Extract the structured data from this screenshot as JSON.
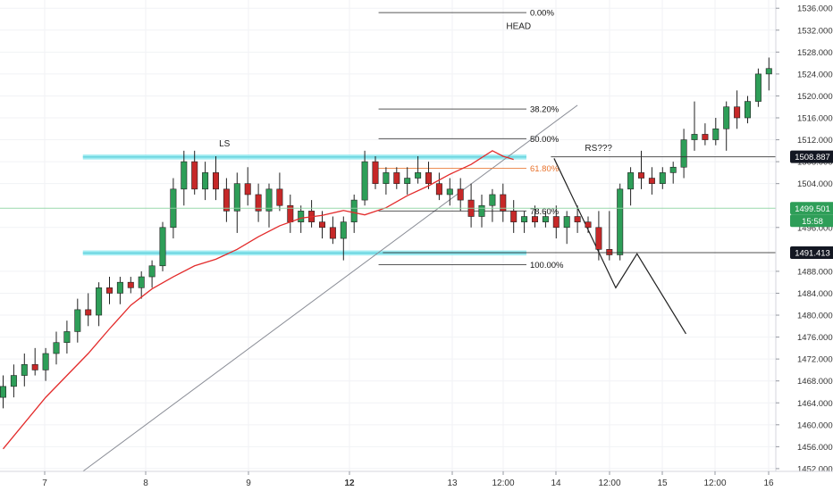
{
  "chart_data": {
    "type": "candlestick",
    "y_axis": {
      "ticks": [
        1452,
        1456,
        1460,
        1464,
        1468,
        1472,
        1476,
        1480,
        1484,
        1488,
        1496,
        1504,
        1508,
        1512,
        1516,
        1520,
        1524,
        1528,
        1532,
        1536
      ],
      "tick_labels": [
        "1452.000",
        "1456.000",
        "1460.000",
        "1464.000",
        "1468.000",
        "1472.000",
        "1476.000",
        "1480.000",
        "1484.000",
        "1488.000",
        "1496.000",
        "1504.000",
        "1508.000",
        "1512.000",
        "1516.000",
        "1520.000",
        "1524.000",
        "1528.000",
        "1532.000",
        "1536.000"
      ],
      "range": [
        1451.5,
        1537.5
      ],
      "position": "right"
    },
    "x_axis": {
      "tick_labels": [
        "7",
        "8",
        "9",
        "12",
        "13",
        "12:00",
        "14",
        "12:00",
        "15",
        "12:00",
        "16"
      ],
      "tick_bold": [
        false,
        false,
        false,
        true,
        false,
        false,
        false,
        false,
        false,
        false,
        false
      ]
    },
    "price_tags": [
      {
        "value": 1508.887,
        "label": "1508.887",
        "style": "dark"
      },
      {
        "value": 1499.501,
        "label": "1499.501",
        "style": "green"
      },
      {
        "value": 1491.413,
        "label": "1491.413",
        "style": "dark"
      }
    ],
    "countdown": "15:58",
    "fibonacci": [
      {
        "label": "0.00%",
        "value": 1535.2,
        "color": "#111111"
      },
      {
        "label": "38.20%",
        "value": 1517.6,
        "color": "#111111"
      },
      {
        "label": "50.00%",
        "value": 1512.2,
        "color": "#111111"
      },
      {
        "label": "61.80%",
        "value": 1506.8,
        "color": "#e8722c"
      },
      {
        "label": "78.60%",
        "value": 1499.0,
        "color": "#111111"
      },
      {
        "label": "100.00%",
        "value": 1489.2,
        "color": "#111111"
      }
    ],
    "annotations": [
      {
        "text": "HEAD",
        "x": 47.3,
        "value": 1532.2
      },
      {
        "text": "LS",
        "x": 20.3,
        "value": 1510.8
      },
      {
        "text": "RS???",
        "x": 54.7,
        "value": 1510.0
      }
    ],
    "support_resistance_zones": [
      {
        "from": 1508.4,
        "to": 1509.3
      },
      {
        "from": 1490.9,
        "to": 1491.8
      }
    ],
    "trendline": {
      "from": {
        "x": 7.5,
        "y": 1451.5
      },
      "to": {
        "x": 54.0,
        "y": 1518.3
      }
    },
    "projection_path": [
      {
        "x": 51.8,
        "y": 1508.6
      },
      {
        "x": 57.6,
        "y": 1485.0
      },
      {
        "x": 59.6,
        "y": 1491.2
      },
      {
        "x": 64.2,
        "y": 1476.6
      }
    ],
    "moving_average": {
      "color": "#e32b2b",
      "x": [
        0,
        4,
        8,
        10,
        12,
        14,
        16,
        18,
        20,
        22,
        24,
        26,
        28,
        30,
        32,
        34,
        36,
        38,
        40,
        42,
        44,
        46,
        47,
        48
      ],
      "y": [
        1455.6,
        1465.0,
        1473.0,
        1477.5,
        1481.8,
        1484.8,
        1487.0,
        1489.0,
        1490.2,
        1492.0,
        1494.3,
        1496.3,
        1497.7,
        1498.2,
        1499.1,
        1498.3,
        1499.6,
        1501.8,
        1503.6,
        1505.7,
        1507.5,
        1510.0,
        1509.0,
        1508.4
      ]
    },
    "candles": {
      "fields": [
        "open",
        "high",
        "low",
        "close"
      ],
      "up_color": "#2e9e58",
      "down_color": "#c62828",
      "data": [
        [
          1465,
          1469,
          1463,
          1467
        ],
        [
          1467,
          1471,
          1465,
          1469
        ],
        [
          1469,
          1473,
          1467,
          1471
        ],
        [
          1471,
          1474,
          1469,
          1470
        ],
        [
          1470,
          1474,
          1468,
          1473
        ],
        [
          1473,
          1477,
          1471,
          1475
        ],
        [
          1475,
          1479,
          1473,
          1477
        ],
        [
          1477,
          1483,
          1475,
          1481
        ],
        [
          1481,
          1484,
          1478,
          1480
        ],
        [
          1480,
          1486,
          1478,
          1485
        ],
        [
          1485,
          1487,
          1482,
          1484
        ],
        [
          1484,
          1487,
          1482,
          1486
        ],
        [
          1486,
          1487,
          1484,
          1485
        ],
        [
          1485,
          1488,
          1483,
          1487
        ],
        [
          1487,
          1490,
          1485,
          1489
        ],
        [
          1489,
          1497,
          1488,
          1496
        ],
        [
          1496,
          1505,
          1494,
          1503
        ],
        [
          1503,
          1510,
          1500,
          1508
        ],
        [
          1508,
          1510,
          1502,
          1503
        ],
        [
          1503,
          1508,
          1501,
          1506
        ],
        [
          1506,
          1509,
          1501,
          1503
        ],
        [
          1503,
          1505,
          1497,
          1499
        ],
        [
          1499,
          1506,
          1495,
          1504
        ],
        [
          1504,
          1507,
          1500,
          1502
        ],
        [
          1502,
          1504,
          1497,
          1499
        ],
        [
          1499,
          1504,
          1496,
          1503
        ],
        [
          1503,
          1506,
          1499,
          1500
        ],
        [
          1500,
          1502,
          1495,
          1497
        ],
        [
          1497,
          1500,
          1495,
          1499
        ],
        [
          1499,
          1501,
          1496,
          1497
        ],
        [
          1497,
          1499,
          1494,
          1496
        ],
        [
          1496,
          1498,
          1493,
          1494
        ],
        [
          1494,
          1498,
          1490,
          1497
        ],
        [
          1497,
          1502,
          1495,
          1501
        ],
        [
          1501,
          1510,
          1500,
          1508
        ],
        [
          1508,
          1509,
          1503,
          1504
        ],
        [
          1504,
          1507,
          1502,
          1506
        ],
        [
          1506,
          1507,
          1503,
          1504
        ],
        [
          1504,
          1507,
          1502,
          1505
        ],
        [
          1505,
          1509,
          1504,
          1506
        ],
        [
          1506,
          1508,
          1503,
          1504
        ],
        [
          1504,
          1506,
          1501,
          1502
        ],
        [
          1502,
          1505,
          1500,
          1503
        ],
        [
          1503,
          1505,
          1499,
          1501
        ],
        [
          1501,
          1504,
          1496,
          1498
        ],
        [
          1498,
          1502,
          1496,
          1500
        ],
        [
          1500,
          1503,
          1497,
          1502
        ],
        [
          1502,
          1504,
          1497,
          1499
        ],
        [
          1499,
          1501,
          1495,
          1497
        ],
        [
          1497,
          1499,
          1495,
          1498
        ],
        [
          1498,
          1500,
          1496,
          1497
        ],
        [
          1497,
          1499,
          1496,
          1498
        ],
        [
          1498,
          1500,
          1494,
          1496
        ],
        [
          1496,
          1499,
          1493,
          1498
        ],
        [
          1498,
          1500,
          1495,
          1497
        ],
        [
          1497,
          1498,
          1495,
          1496
        ],
        [
          1496,
          1499,
          1490,
          1492
        ],
        [
          1492,
          1499,
          1490,
          1491
        ],
        [
          1491,
          1504,
          1490,
          1503
        ],
        [
          1503,
          1507,
          1500,
          1506
        ],
        [
          1506,
          1510,
          1503,
          1505
        ],
        [
          1505,
          1507,
          1502,
          1504
        ],
        [
          1504,
          1507,
          1503,
          1506
        ],
        [
          1506,
          1508,
          1504,
          1507
        ],
        [
          1507,
          1514,
          1505,
          1512
        ],
        [
          1512,
          1519,
          1510,
          1513
        ],
        [
          1513,
          1515,
          1511,
          1512
        ],
        [
          1512,
          1516,
          1511,
          1514
        ],
        [
          1514,
          1519,
          1510,
          1518
        ],
        [
          1518,
          1521,
          1514,
          1516
        ],
        [
          1516,
          1520,
          1515,
          1519
        ],
        [
          1519,
          1525,
          1518,
          1524
        ],
        [
          1524,
          1527,
          1521,
          1525
        ],
        [
          1525,
          1532,
          1523,
          1531
        ],
        [
          1531,
          1534,
          1526,
          1530
        ],
        [
          1530,
          1535,
          1526,
          1528
        ],
        [
          1528,
          1530,
          1523,
          1525
        ],
        [
          1525,
          1526,
          1516,
          1517
        ],
        [
          1517,
          1518,
          1506,
          1508
        ],
        [
          1508,
          1509,
          1488,
          1489
        ],
        [
          1489,
          1502,
          1486,
          1500
        ]
      ]
    }
  }
}
